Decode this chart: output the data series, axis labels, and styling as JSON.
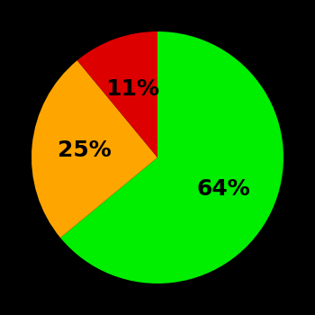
{
  "slices": [
    64,
    25,
    11
  ],
  "colors": [
    "#00EE00",
    "#FFA500",
    "#DD0000"
  ],
  "labels": [
    "64%",
    "25%",
    "11%"
  ],
  "background_color": "#000000",
  "text_color": "#000000",
  "startangle": 90,
  "counterclock": false,
  "label_r": 0.58,
  "fontsize": 18,
  "figsize": [
    3.5,
    3.5
  ],
  "dpi": 100
}
